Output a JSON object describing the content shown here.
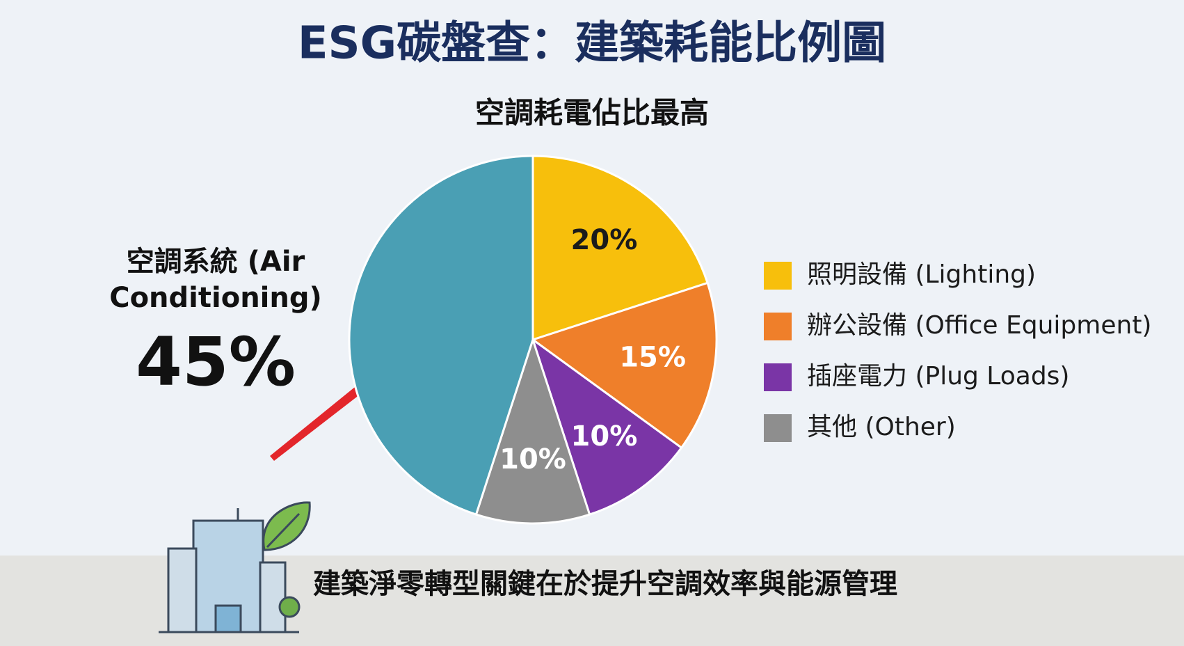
{
  "chart_data": {
    "type": "pie",
    "title": "ESG碳盤查：建築耗能比例圖",
    "subtitle": "空調耗電佔比最高",
    "categories": [
      "照明設備 (Lighting)",
      "辦公設備 (Office Equipment)",
      "插座電力 (Plug Loads)",
      "其他 (Other)",
      "空調系統 (Air Conditioning)"
    ],
    "values": [
      20,
      15,
      10,
      10,
      45
    ],
    "value_labels": [
      "20%",
      "15%",
      "10%",
      "10%",
      "45%"
    ],
    "colors": [
      "#f7bf0c",
      "#ef7f2a",
      "#7a35a6",
      "#8e8e8e",
      "#4a9fb4"
    ],
    "label_colors": [
      "#1b1b1b",
      "#ffffff",
      "#ffffff",
      "#ffffff",
      "#111111"
    ],
    "caption": "建築淨零轉型關鍵在於提升空調效率與能源管理"
  }
}
